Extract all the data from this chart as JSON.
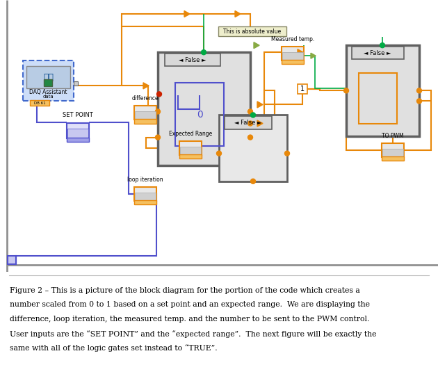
{
  "fig_width": 6.3,
  "fig_height": 5.25,
  "dpi": 100,
  "bg_color": "#ffffff",
  "caption_lines": [
    "Figure 2 – This is a picture of the block diagram for the portion of the code which creates a",
    "number scaled from 0 to 1 based on a set point and an expected range.  We are displaying the",
    "difference, loop iteration, the measured temp. and the number to be sent to the PWM control.",
    "User inputs are the “SET POINT” and the “expected range”.  The next figure will be exactly the",
    "same with all of the logic gates set instead to “TRUE”."
  ],
  "caption_fontsize": 7.8,
  "orange": "#E8880A",
  "orange_light": "#f5c060",
  "purple": "#5050cc",
  "green": "#00aa44",
  "dark_gray": "#555555",
  "blue_box": "#4169cc",
  "blue_fill": "#ccddf8"
}
